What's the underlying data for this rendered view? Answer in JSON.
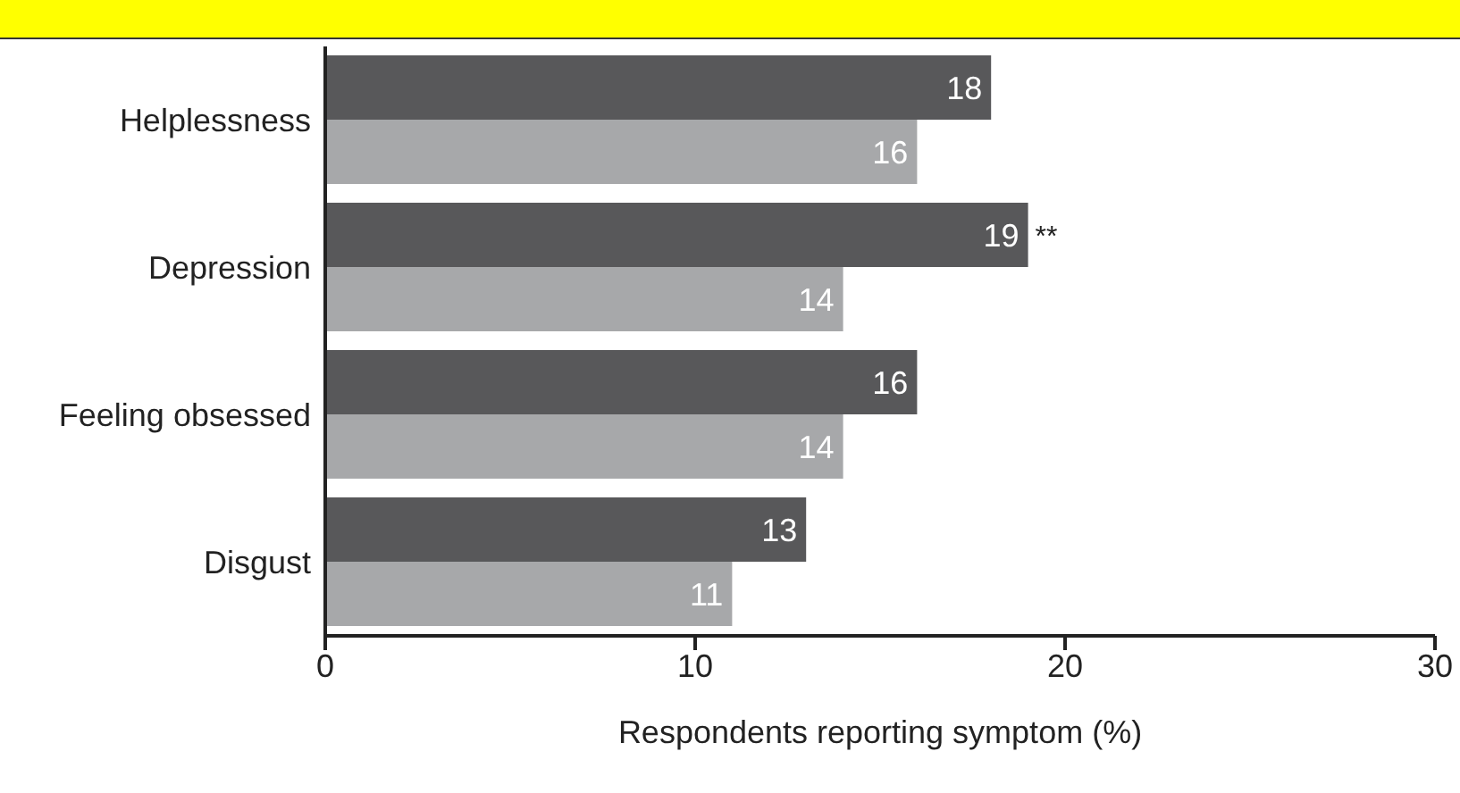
{
  "chart_data": {
    "type": "bar",
    "orientation": "horizontal",
    "xlabel": "Respondents reporting symptom (%)",
    "categories": [
      "Helplessness",
      "Depression",
      "Feeling obsessed",
      "Disgust"
    ],
    "series": [
      {
        "color": "#58585a",
        "values": [
          18,
          19,
          16,
          13
        ]
      },
      {
        "color": "#a7a8aa",
        "values": [
          16,
          14,
          14,
          11
        ]
      }
    ],
    "xlim": [
      0,
      30
    ],
    "xticks": [
      0,
      10,
      20,
      30
    ],
    "data_labels": true,
    "annotations": [
      {
        "text": "**",
        "x": 19,
        "y": "Depression"
      }
    ]
  }
}
